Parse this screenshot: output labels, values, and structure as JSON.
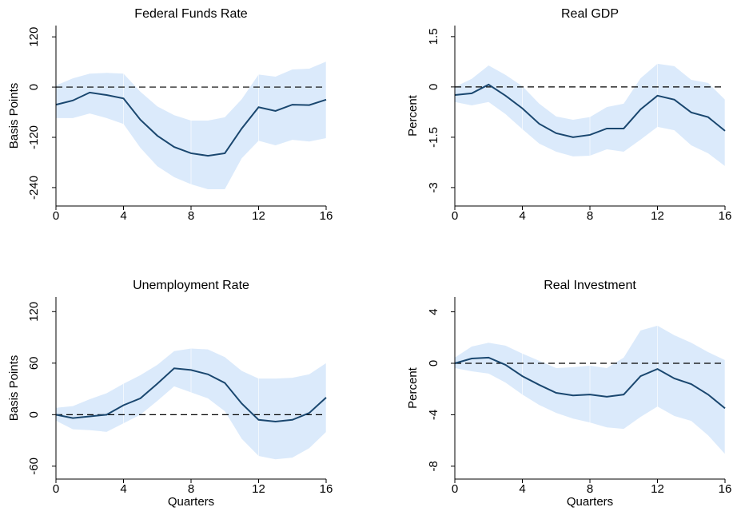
{
  "chart_data": [
    {
      "type": "line",
      "title": "Federal Funds Rate",
      "y_label": "Basis Points",
      "x": [
        0,
        1,
        2,
        3,
        4,
        5,
        6,
        7,
        8,
        9,
        10,
        11,
        12,
        13,
        14,
        15,
        16
      ],
      "xlim": [
        0,
        16
      ],
      "xticks": [
        0,
        4,
        8,
        12,
        16
      ],
      "ylim": [
        -284,
        147
      ],
      "yticks": [
        -240,
        -120,
        0,
        120
      ],
      "reference_line": 0,
      "grid": true,
      "color": "#1a476f",
      "band_color": "#dbeafb",
      "values": [
        -42,
        -32,
        -13,
        -19,
        -27,
        -78,
        -116,
        -143,
        -158,
        -164,
        -158,
        -99,
        -48,
        -57,
        -42,
        -43,
        -30
      ],
      "band_upper": [
        4,
        21,
        32,
        34,
        32,
        -11,
        -46,
        -67,
        -80,
        -80,
        -72,
        -29,
        30,
        25,
        42,
        44,
        61
      ],
      "band_lower": [
        -74,
        -74,
        -63,
        -74,
        -88,
        -145,
        -189,
        -215,
        -232,
        -244,
        -244,
        -170,
        -128,
        -139,
        -126,
        -130,
        -122
      ]
    },
    {
      "type": "line",
      "title": "Real GDP",
      "y_label": "Percent",
      "x": [
        0,
        1,
        2,
        3,
        4,
        5,
        6,
        7,
        8,
        9,
        10,
        11,
        12,
        13,
        14,
        15,
        16
      ],
      "xlim": [
        0,
        16
      ],
      "xticks": [
        0,
        4,
        8,
        12,
        16
      ],
      "ylim": [
        -3.55,
        1.83
      ],
      "yticks": [
        -3,
        -1.5,
        0,
        1.5
      ],
      "reference_line": 0,
      "grid": true,
      "color": "#1a476f",
      "band_color": "#dbeafb",
      "values": [
        -0.24,
        -0.19,
        0.07,
        -0.26,
        -0.64,
        -1.1,
        -1.38,
        -1.5,
        -1.43,
        -1.24,
        -1.24,
        -0.67,
        -0.26,
        -0.38,
        -0.76,
        -0.9,
        -1.31
      ],
      "band_upper": [
        0,
        0.24,
        0.64,
        0.36,
        0.02,
        -0.5,
        -0.88,
        -0.98,
        -0.9,
        -0.6,
        -0.5,
        0.26,
        0.69,
        0.62,
        0.21,
        0.12,
        -0.38
      ],
      "band_lower": [
        -0.45,
        -0.55,
        -0.45,
        -0.81,
        -1.26,
        -1.69,
        -1.93,
        -2.07,
        -2.05,
        -1.86,
        -1.93,
        -1.57,
        -1.19,
        -1.29,
        -1.74,
        -1.98,
        -2.36
      ]
    },
    {
      "type": "line",
      "title": "Unemployment Rate",
      "y_label": "Basis Points",
      "x_label": "Quarters",
      "x": [
        0,
        1,
        2,
        3,
        4,
        5,
        6,
        7,
        8,
        9,
        10,
        11,
        12,
        13,
        14,
        15,
        16
      ],
      "xlim": [
        0,
        16
      ],
      "xticks": [
        0,
        4,
        8,
        12,
        16
      ],
      "ylim": [
        -75,
        137
      ],
      "yticks": [
        -60,
        0,
        60,
        120
      ],
      "reference_line": 0,
      "grid": true,
      "color": "#1a476f",
      "band_color": "#dbeafb",
      "values": [
        0,
        -4,
        -2,
        0,
        11,
        19,
        36,
        54,
        52,
        47,
        37,
        13,
        -6,
        -8,
        -6,
        2,
        20
      ],
      "band_upper": [
        8,
        10,
        18,
        25,
        36,
        46,
        58,
        74,
        77,
        76,
        67,
        51,
        42,
        42,
        43,
        47,
        60
      ],
      "band_lower": [
        -7,
        -17,
        -18,
        -20,
        -10,
        0,
        16,
        33,
        26,
        19,
        4,
        -28,
        -48,
        -52,
        -50,
        -39,
        -20
      ]
    },
    {
      "type": "line",
      "title": "Real Investment",
      "y_label": "Percent",
      "x_label": "Quarters",
      "x": [
        0,
        1,
        2,
        3,
        4,
        5,
        6,
        7,
        8,
        9,
        10,
        11,
        12,
        13,
        14,
        15,
        16
      ],
      "xlim": [
        0,
        16
      ],
      "xticks": [
        0,
        4,
        8,
        12,
        16
      ],
      "ylim": [
        -9,
        5.15
      ],
      "yticks": [
        -8,
        -4,
        0,
        4
      ],
      "reference_line": 0,
      "grid": true,
      "color": "#1a476f",
      "band_color": "#dbeafb",
      "values": [
        0,
        0.37,
        0.44,
        -0.12,
        -1,
        -1.68,
        -2.3,
        -2.5,
        -2.43,
        -2.6,
        -2.43,
        -1,
        -0.44,
        -1.18,
        -1.62,
        -2.43,
        -3.5
      ],
      "band_upper": [
        0.44,
        1.3,
        1.6,
        1.37,
        0.75,
        0.19,
        -0.37,
        -0.3,
        -0.19,
        -0.37,
        0.44,
        2.55,
        2.92,
        2.18,
        1.6,
        0.87,
        0.25
      ],
      "band_lower": [
        -0.37,
        -0.62,
        -0.8,
        -1.5,
        -2.43,
        -3.24,
        -3.86,
        -4.3,
        -4.6,
        -4.98,
        -5.1,
        -4.17,
        -3.36,
        -4.1,
        -4.48,
        -5.6,
        -7.05
      ]
    }
  ]
}
